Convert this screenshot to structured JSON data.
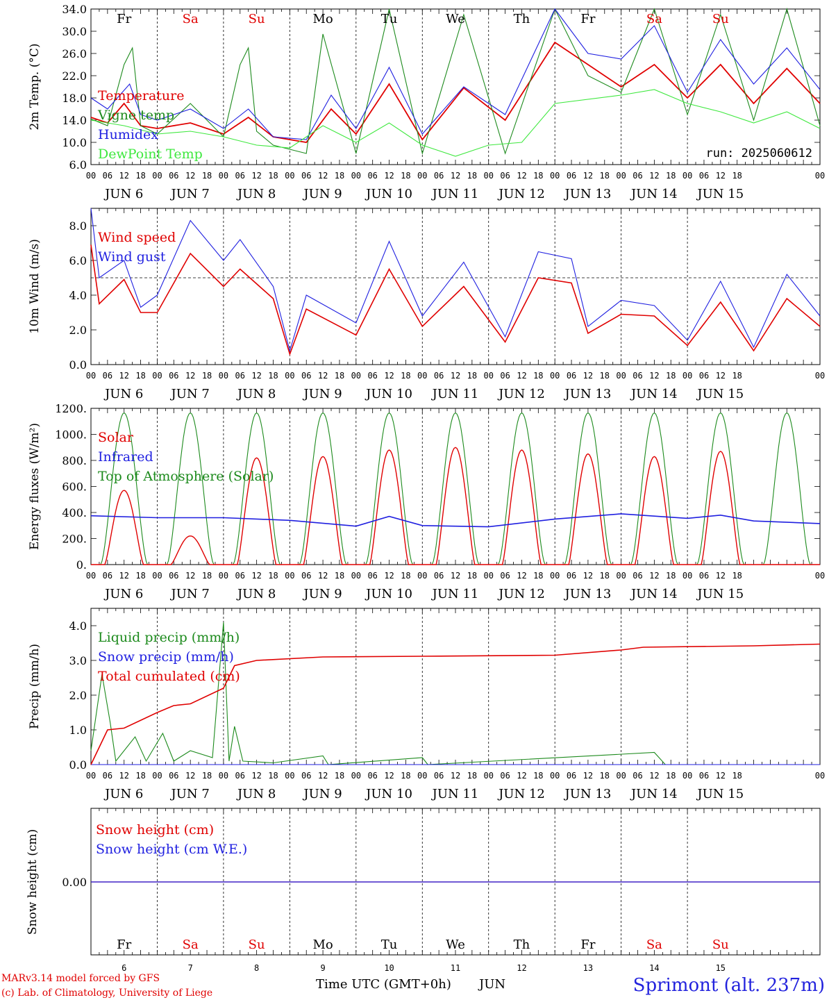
{
  "colors": {
    "red": "#e00000",
    "green": "#1c8a1c",
    "blue": "#1f1fe0",
    "lightgreen": "#3ee83e",
    "black": "#000000"
  },
  "hour_labels": [
    "00",
    "06",
    "12",
    "18"
  ],
  "last_hour_label": "00",
  "dates": [
    "JUN  6",
    "JUN  7",
    "JUN  8",
    "JUN  9",
    "JUN 10",
    "JUN 11",
    "JUN 12",
    "JUN 13",
    "JUN 14",
    "JUN 15"
  ],
  "weekdays": [
    {
      "label": "Fr",
      "color": "#000000"
    },
    {
      "label": "Sa",
      "color": "#e00000"
    },
    {
      "label": "Su",
      "color": "#e00000"
    },
    {
      "label": "Mo",
      "color": "#000000"
    },
    {
      "label": "Tu",
      "color": "#000000"
    },
    {
      "label": "We",
      "color": "#000000"
    },
    {
      "label": "Th",
      "color": "#000000"
    },
    {
      "label": "Fr",
      "color": "#000000"
    },
    {
      "label": "Sa",
      "color": "#e00000"
    },
    {
      "label": "Su",
      "color": "#e00000"
    }
  ],
  "day_numbers": [
    "6",
    "7",
    "8",
    "9",
    "10",
    "11",
    "12",
    "13",
    "14",
    "15"
  ],
  "footer": {
    "model": "MARv3.14 model forced by GFS",
    "credit": "(c) Lab. of Climatology, University of Liege",
    "xlabel": "Time UTC (GMT+0h)",
    "month": "JUN",
    "station": "Sprimont (alt. 237m)"
  },
  "chart_data": [
    {
      "type": "line",
      "ylabel": "2m Temp. (°C)",
      "ylim": [
        6,
        34
      ],
      "yticks": [
        "6.0",
        "10.0",
        "14.0",
        "18.0",
        "22.0",
        "26.0",
        "30.0",
        "34.0"
      ],
      "run": "run: 2025060612",
      "x_unit": "hours since JUN 6 00 UTC",
      "series": [
        {
          "name": "Temperature",
          "color": "#e00000",
          "points": [
            [
              0,
              14.5
            ],
            [
              6,
              13.5
            ],
            [
              12,
              17
            ],
            [
              18,
              13
            ],
            [
              24,
              12.5
            ],
            [
              36,
              13.5
            ],
            [
              48,
              11.5
            ],
            [
              57,
              14.5
            ],
            [
              66,
              11
            ],
            [
              78,
              10
            ],
            [
              87,
              16
            ],
            [
              96,
              11.5
            ],
            [
              108,
              20.5
            ],
            [
              120,
              10.5
            ],
            [
              135,
              19.8
            ],
            [
              150,
              14
            ],
            [
              168,
              28
            ],
            [
              180,
              24
            ],
            [
              192,
              20
            ],
            [
              204,
              24
            ],
            [
              216,
              18
            ],
            [
              228,
              24
            ],
            [
              240,
              17
            ],
            [
              252,
              23.3
            ],
            [
              264,
              17
            ]
          ]
        },
        {
          "name": "Vigne temp",
          "color": "#1c8a1c",
          "points": [
            [
              0,
              14.2
            ],
            [
              6,
              13
            ],
            [
              12,
              24
            ],
            [
              15,
              27
            ],
            [
              18,
              13
            ],
            [
              24,
              11.5
            ],
            [
              36,
              17
            ],
            [
              48,
              11
            ],
            [
              54,
              24
            ],
            [
              57,
              27
            ],
            [
              60,
              12
            ],
            [
              66,
              9.5
            ],
            [
              78,
              8
            ],
            [
              84,
              29.5
            ],
            [
              96,
              8
            ],
            [
              108,
              34
            ],
            [
              120,
              8
            ],
            [
              135,
              33
            ],
            [
              150,
              8
            ],
            [
              168,
              34
            ],
            [
              180,
              22
            ],
            [
              192,
              19
            ],
            [
              204,
              34
            ],
            [
              216,
              15
            ],
            [
              228,
              33
            ],
            [
              240,
              14
            ],
            [
              252,
              34
            ],
            [
              264,
              13
            ]
          ]
        },
        {
          "name": "Humidex",
          "color": "#1f1fe0",
          "points": [
            [
              0,
              18
            ],
            [
              6,
              16
            ],
            [
              14,
              20.5
            ],
            [
              18,
              15
            ],
            [
              24,
              14
            ],
            [
              36,
              16
            ],
            [
              48,
              12.5
            ],
            [
              57,
              16
            ],
            [
              66,
              11
            ],
            [
              78,
              10.5
            ],
            [
              87,
              18.5
            ],
            [
              96,
              12.5
            ],
            [
              108,
              23.5
            ],
            [
              120,
              11.5
            ],
            [
              135,
              20
            ],
            [
              150,
              15
            ],
            [
              168,
              34
            ],
            [
              180,
              26
            ],
            [
              192,
              25
            ],
            [
              204,
              31
            ],
            [
              216,
              19
            ],
            [
              228,
              28.5
            ],
            [
              240,
              20.5
            ],
            [
              252,
              27
            ],
            [
              264,
              19.5
            ]
          ]
        },
        {
          "name": "DewPoint Temp",
          "color": "#3ee83e",
          "points": [
            [
              0,
              14
            ],
            [
              12,
              13
            ],
            [
              24,
              11.5
            ],
            [
              36,
              12
            ],
            [
              48,
              11
            ],
            [
              60,
              9.5
            ],
            [
              72,
              9
            ],
            [
              84,
              13
            ],
            [
              96,
              10
            ],
            [
              108,
              13.5
            ],
            [
              120,
              9.5
            ],
            [
              132,
              7.5
            ],
            [
              144,
              9.5
            ],
            [
              156,
              10
            ],
            [
              168,
              17
            ],
            [
              192,
              18.5
            ],
            [
              204,
              19.5
            ],
            [
              216,
              17
            ],
            [
              228,
              15.5
            ],
            [
              240,
              13.5
            ],
            [
              252,
              15.5
            ],
            [
              264,
              12.5
            ]
          ]
        }
      ]
    },
    {
      "type": "line",
      "ylabel": "10m Wind (m/s)",
      "ylim": [
        0,
        9
      ],
      "yticks": [
        "0.0",
        "2.0",
        "4.0",
        "6.0",
        "8.0"
      ],
      "reference_line": 5,
      "x_unit": "hours since JUN 6 00 UTC",
      "series": [
        {
          "name": "Wind speed",
          "color": "#e00000",
          "points": [
            [
              0,
              6.9
            ],
            [
              3,
              3.5
            ],
            [
              12,
              4.9
            ],
            [
              18,
              3
            ],
            [
              24,
              3
            ],
            [
              36,
              6.4
            ],
            [
              48,
              4.5
            ],
            [
              54,
              5.5
            ],
            [
              66,
              3.8
            ],
            [
              72,
              0.6
            ],
            [
              78,
              3.2
            ],
            [
              96,
              1.7
            ],
            [
              108,
              5.5
            ],
            [
              120,
              2.2
            ],
            [
              135,
              4.5
            ],
            [
              150,
              1.3
            ],
            [
              162,
              5
            ],
            [
              174,
              4.7
            ],
            [
              180,
              1.8
            ],
            [
              192,
              2.9
            ],
            [
              204,
              2.8
            ],
            [
              216,
              1.1
            ],
            [
              228,
              3.6
            ],
            [
              240,
              0.8
            ],
            [
              252,
              3.8
            ],
            [
              264,
              2.2
            ]
          ]
        },
        {
          "name": "Wind gust",
          "color": "#1f1fe0",
          "points": [
            [
              0,
              9
            ],
            [
              3,
              5
            ],
            [
              12,
              6
            ],
            [
              18,
              3.3
            ],
            [
              24,
              4
            ],
            [
              36,
              8.3
            ],
            [
              48,
              6
            ],
            [
              54,
              7.2
            ],
            [
              66,
              4.5
            ],
            [
              72,
              0.8
            ],
            [
              78,
              4
            ],
            [
              96,
              2.4
            ],
            [
              108,
              7.1
            ],
            [
              120,
              2.8
            ],
            [
              135,
              5.9
            ],
            [
              150,
              1.6
            ],
            [
              162,
              6.5
            ],
            [
              174,
              6.1
            ],
            [
              180,
              2.2
            ],
            [
              192,
              3.7
            ],
            [
              204,
              3.4
            ],
            [
              216,
              1.4
            ],
            [
              228,
              4.8
            ],
            [
              240,
              1
            ],
            [
              252,
              5.2
            ],
            [
              264,
              2.8
            ]
          ]
        }
      ]
    },
    {
      "type": "line",
      "ylabel": "Energy fluxes (W/m²)",
      "ylim": [
        0,
        1200
      ],
      "yticks": [
        "0.",
        "200.",
        "400.",
        "600.",
        "800.",
        "1000.",
        "1200."
      ],
      "x_unit": "hours since JUN 6 00 UTC",
      "series": [
        {
          "name": "Solar",
          "color": "#e00000",
          "daily_peaks": [
            570,
            220,
            820,
            830,
            880,
            900,
            880,
            850,
            830,
            870
          ]
        },
        {
          "name": "Infrared",
          "color": "#1f1fe0",
          "points": [
            [
              0,
              375
            ],
            [
              24,
              360
            ],
            [
              48,
              360
            ],
            [
              72,
              340
            ],
            [
              96,
              295
            ],
            [
              108,
              370
            ],
            [
              120,
              300
            ],
            [
              144,
              290
            ],
            [
              168,
              350
            ],
            [
              192,
              390
            ],
            [
              216,
              355
            ],
            [
              228,
              380
            ],
            [
              240,
              335
            ],
            [
              264,
              315
            ]
          ]
        },
        {
          "name": "Top of Atmosphere (Solar)",
          "color": "#1c8a1c",
          "daily_peak": 1165
        }
      ]
    },
    {
      "type": "line",
      "ylabel": "Precip (mm/h)",
      "ylim": [
        0,
        4.5
      ],
      "yticks": [
        "0.0",
        "1.0",
        "2.0",
        "3.0",
        "4.0"
      ],
      "x_unit": "hours since JUN 6 00 UTC",
      "series": [
        {
          "name": "Liquid precip (mm/h)",
          "color": "#1c8a1c",
          "points": [
            [
              0,
              0.4
            ],
            [
              4,
              2.6
            ],
            [
              7,
              1.2
            ],
            [
              9,
              0.1
            ],
            [
              16,
              0.8
            ],
            [
              20,
              0.1
            ],
            [
              26,
              0.9
            ],
            [
              30,
              0.1
            ],
            [
              36,
              0.4
            ],
            [
              44,
              0.2
            ],
            [
              48,
              4.1
            ],
            [
              50,
              0.1
            ],
            [
              52,
              1.1
            ],
            [
              55,
              0.1
            ],
            [
              66,
              0.05
            ],
            [
              84,
              0.25
            ],
            [
              86,
              0
            ],
            [
              120,
              0.2
            ],
            [
              122,
              0
            ],
            [
              204,
              0.35
            ],
            [
              208,
              0
            ],
            [
              264,
              0
            ]
          ]
        },
        {
          "name": "Snow precip (mm/h)",
          "color": "#1f1fe0",
          "points": [
            [
              0,
              0
            ],
            [
              264,
              0
            ]
          ]
        },
        {
          "name": "Total cumulated (cm)",
          "color": "#e00000",
          "points": [
            [
              0,
              0
            ],
            [
              6,
              1
            ],
            [
              12,
              1.05
            ],
            [
              24,
              1.5
            ],
            [
              30,
              1.7
            ],
            [
              36,
              1.75
            ],
            [
              48,
              2.2
            ],
            [
              52,
              2.85
            ],
            [
              60,
              3
            ],
            [
              84,
              3.1
            ],
            [
              120,
              3.12
            ],
            [
              168,
              3.15
            ],
            [
              192,
              3.3
            ],
            [
              200,
              3.38
            ],
            [
              240,
              3.42
            ],
            [
              264,
              3.47
            ]
          ]
        }
      ]
    },
    {
      "type": "line",
      "ylabel": "Snow height (cm)",
      "yticks": [
        "0.00"
      ],
      "x_unit": "hours since JUN 6 00 UTC",
      "series": [
        {
          "name": "Snow height (cm)",
          "color": "#e00000",
          "points": [
            [
              0,
              0
            ],
            [
              264,
              0
            ]
          ]
        },
        {
          "name": "Snow height (cm W.E.)",
          "color": "#1f1fe0",
          "points": [
            [
              0,
              0
            ],
            [
              264,
              0
            ]
          ]
        }
      ]
    }
  ]
}
